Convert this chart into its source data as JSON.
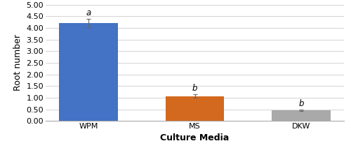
{
  "categories": [
    "WPM",
    "MS",
    "DKW"
  ],
  "values": [
    4.2,
    1.07,
    0.45
  ],
  "errors": [
    0.18,
    0.08,
    0.03
  ],
  "bar_colors": [
    "#4472C4",
    "#D2691E",
    "#A9A9A9"
  ],
  "letters": [
    "a",
    "b",
    "b"
  ],
  "xlabel": "Culture Media",
  "ylabel": "Root number",
  "ylim": [
    0,
    5.0
  ],
  "yticks": [
    0.0,
    0.5,
    1.0,
    1.5,
    2.0,
    2.5,
    3.0,
    3.5,
    4.0,
    4.5,
    5.0
  ],
  "bar_width": 0.55,
  "background_color": "#ffffff",
  "grid_color": "#cccccc",
  "xlabel_fontsize": 9,
  "ylabel_fontsize": 9,
  "tick_fontsize": 8,
  "letter_fontsize": 8.5
}
